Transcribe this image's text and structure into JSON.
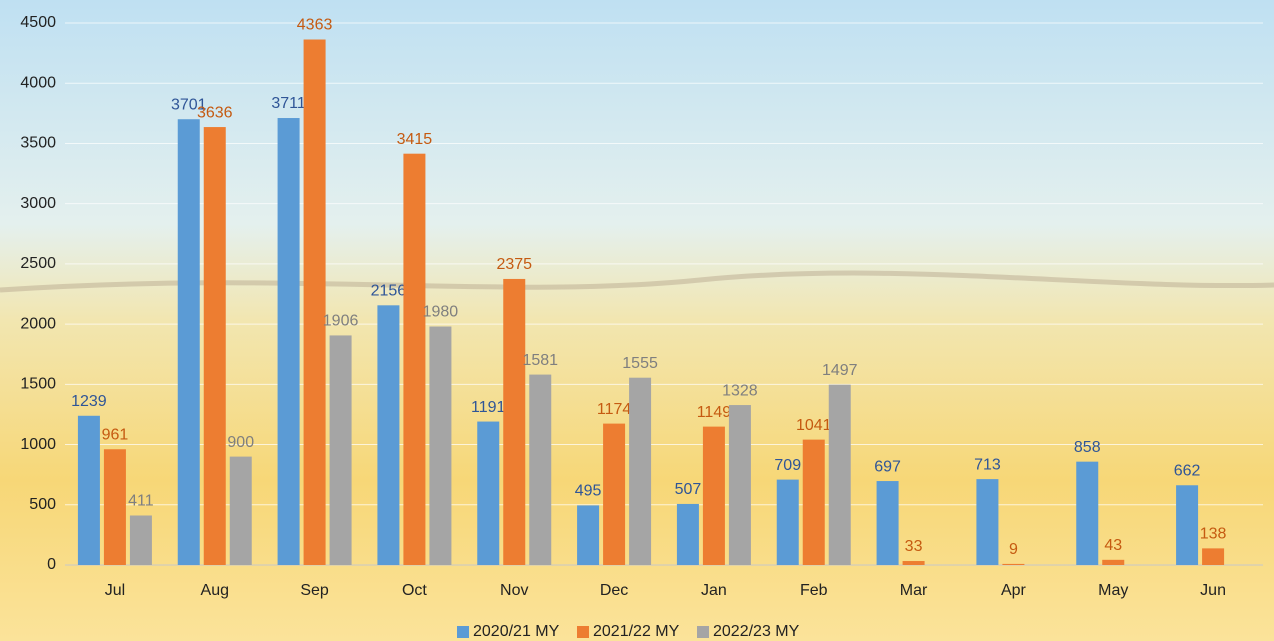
{
  "chart_data": {
    "type": "bar",
    "categories": [
      "Jul",
      "Aug",
      "Sep",
      "Oct",
      "Nov",
      "Dec",
      "Jan",
      "Feb",
      "Mar",
      "Apr",
      "May",
      "Jun"
    ],
    "series": [
      {
        "name": "2020/21 MY",
        "color": "#5b9bd5",
        "label_color": "#2f5597",
        "values": [
          1239,
          3701,
          3711,
          2156,
          1191,
          495,
          507,
          709,
          697,
          713,
          858,
          662
        ]
      },
      {
        "name": "2021/22 MY",
        "color": "#ed7d31",
        "label_color": "#c55a11",
        "values": [
          961,
          3636,
          4363,
          3415,
          2375,
          1174,
          1149,
          1041,
          33,
          9,
          43,
          138
        ]
      },
      {
        "name": "2022/23 MY",
        "color": "#a5a5a5",
        "label_color": "#7f7f7f",
        "values": [
          411,
          900,
          1906,
          1980,
          1581,
          1555,
          1328,
          1497,
          null,
          null,
          null,
          null
        ]
      }
    ],
    "ylim": [
      0,
      4500
    ],
    "yticks": [
      0,
      500,
      1000,
      1500,
      2000,
      2500,
      3000,
      3500,
      4000,
      4500
    ],
    "grid": true,
    "legend": "bottom"
  }
}
